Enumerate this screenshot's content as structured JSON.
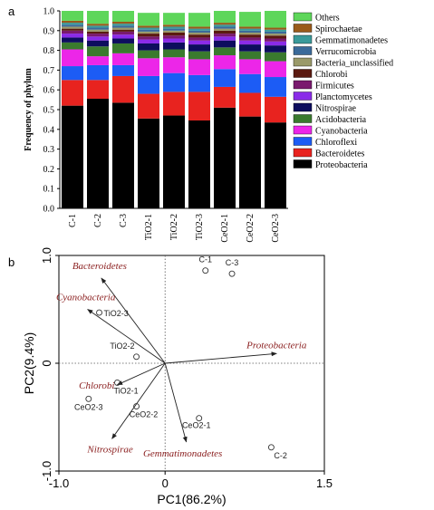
{
  "figure": {
    "panel_a_label": "a",
    "panel_b_label": "b"
  },
  "chart_data": [
    {
      "type": "bar",
      "stacked": true,
      "ylabel": "Frequency of phylum",
      "ylim": [
        0,
        1.0
      ],
      "yticks": [
        "0.0",
        "0.1",
        "0.2",
        "0.3",
        "0.4",
        "0.5",
        "0.6",
        "0.7",
        "0.8",
        "0.9",
        "1.0"
      ],
      "categories": [
        "C-1",
        "C-2",
        "C-3",
        "TiO2-1",
        "TiO2-2",
        "TiO2-3",
        "CeO2-1",
        "CeO2-2",
        "CeO2-3"
      ],
      "legend_position": "right",
      "series": [
        {
          "name": "Proteobacteria",
          "color": "#000000",
          "values": [
            0.52,
            0.555,
            0.535,
            0.455,
            0.47,
            0.445,
            0.51,
            0.465,
            0.435
          ]
        },
        {
          "name": "Bacteroidetes",
          "color": "#e8231f",
          "values": [
            0.13,
            0.095,
            0.135,
            0.125,
            0.12,
            0.145,
            0.105,
            0.12,
            0.13
          ]
        },
        {
          "name": "Chloroflexi",
          "color": "#1c5cf5",
          "values": [
            0.07,
            0.075,
            0.055,
            0.09,
            0.095,
            0.085,
            0.09,
            0.095,
            0.1
          ]
        },
        {
          "name": "Cyanobacteria",
          "color": "#ec26e8",
          "values": [
            0.085,
            0.045,
            0.06,
            0.09,
            0.08,
            0.08,
            0.07,
            0.075,
            0.08
          ]
        },
        {
          "name": "Acidobacteria",
          "color": "#3a7a2e",
          "values": [
            0.035,
            0.05,
            0.05,
            0.04,
            0.04,
            0.04,
            0.04,
            0.04,
            0.045
          ]
        },
        {
          "name": "Nitrospirae",
          "color": "#0d0d5e",
          "values": [
            0.025,
            0.03,
            0.025,
            0.035,
            0.035,
            0.035,
            0.035,
            0.035,
            0.035
          ]
        },
        {
          "name": "Planctomycetes",
          "color": "#8a2be8",
          "values": [
            0.02,
            0.02,
            0.02,
            0.02,
            0.02,
            0.02,
            0.02,
            0.02,
            0.02
          ]
        },
        {
          "name": "Firmicutes",
          "color": "#7a1a6e",
          "values": [
            0.015,
            0.015,
            0.015,
            0.015,
            0.015,
            0.015,
            0.015,
            0.015,
            0.015
          ]
        },
        {
          "name": "Chlorobi",
          "color": "#5a1a10",
          "values": [
            0.01,
            0.01,
            0.01,
            0.015,
            0.015,
            0.015,
            0.015,
            0.015,
            0.015
          ]
        },
        {
          "name": "Bacteria_unclassified",
          "color": "#9a9a6a",
          "values": [
            0.01,
            0.01,
            0.01,
            0.01,
            0.01,
            0.01,
            0.01,
            0.01,
            0.01
          ]
        },
        {
          "name": "Verrucomicrobia",
          "color": "#3a6a9a",
          "values": [
            0.01,
            0.01,
            0.01,
            0.01,
            0.01,
            0.01,
            0.01,
            0.01,
            0.01
          ]
        },
        {
          "name": "Gemmatimonadetes",
          "color": "#3a9a9a",
          "values": [
            0.01,
            0.01,
            0.01,
            0.01,
            0.01,
            0.01,
            0.01,
            0.01,
            0.01
          ]
        },
        {
          "name": "Spirochaetae",
          "color": "#9a5a1a",
          "values": [
            0.01,
            0.01,
            0.01,
            0.01,
            0.01,
            0.01,
            0.01,
            0.01,
            0.01
          ]
        },
        {
          "name": "Others",
          "color": "#5ed65a",
          "values": [
            0.05,
            0.065,
            0.055,
            0.065,
            0.06,
            0.07,
            0.06,
            0.075,
            0.085
          ]
        }
      ]
    },
    {
      "type": "scatter",
      "subtype": "biplot",
      "xlabel": "PC1(86.2%)",
      "ylabel": "PC2(9.4%)",
      "xlim": [
        -1.0,
        1.5
      ],
      "ylim": [
        -1.0,
        1.0
      ],
      "xticks": [
        "-1.0",
        "0",
        "1.5"
      ],
      "yticks": [
        "1.0",
        "0",
        "-1.0"
      ],
      "points": [
        {
          "label": "C-1",
          "x": 0.38,
          "y": 0.86
        },
        {
          "label": "C-3",
          "x": 0.63,
          "y": 0.83
        },
        {
          "label": "TiO2-3",
          "x": -0.62,
          "y": 0.47
        },
        {
          "label": "TiO2-2",
          "x": -0.27,
          "y": 0.06
        },
        {
          "label": "TiO2-1",
          "x": -0.45,
          "y": -0.18
        },
        {
          "label": "CeO2-3",
          "x": -0.72,
          "y": -0.33
        },
        {
          "label": "CeO2-2",
          "x": -0.27,
          "y": -0.4
        },
        {
          "label": "CeO2-1",
          "x": 0.32,
          "y": -0.51
        },
        {
          "label": "C-2",
          "x": 1.0,
          "y": -0.78
        }
      ],
      "vectors": [
        {
          "label": "Bacteroidetes",
          "x": -0.6,
          "y": 0.79
        },
        {
          "label": "Cyanobacteria",
          "x": -0.73,
          "y": 0.5
        },
        {
          "label": "Proteobacteria",
          "x": 1.05,
          "y": 0.09
        },
        {
          "label": "Chlorobi",
          "x": -0.45,
          "y": -0.2
        },
        {
          "label": "Nitrospirae",
          "x": -0.5,
          "y": -0.7
        },
        {
          "label": "Gemmatimonadetes",
          "x": 0.2,
          "y": -0.73
        }
      ],
      "colors": {
        "species": "#8b2020",
        "points": "#333333"
      }
    }
  ]
}
